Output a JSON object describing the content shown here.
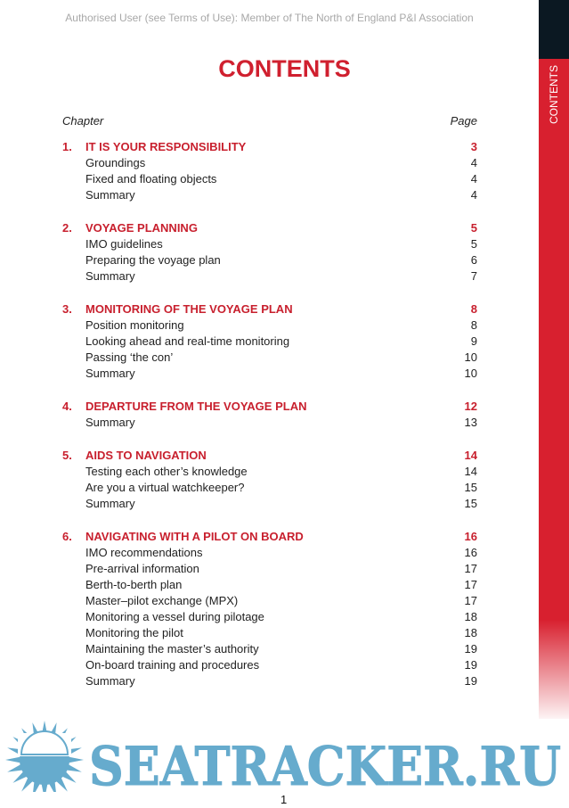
{
  "header": {
    "text": "Authorised User (see Terms of Use): Member of The North of England P&I Association"
  },
  "sidebar": {
    "label": "CONTENTS",
    "colors": {
      "dark": "#0b1822",
      "red": "#d8202f"
    }
  },
  "title": "CONTENTS",
  "columns": {
    "chapter": "Chapter",
    "page": "Page"
  },
  "chapters": [
    {
      "num": "1.",
      "title": "IT IS YOUR RESPONSIBILITY",
      "page": "3",
      "items": [
        {
          "label": "Groundings",
          "page": "4"
        },
        {
          "label": "Fixed and floating objects",
          "page": "4"
        },
        {
          "label": "Summary",
          "page": "4"
        }
      ]
    },
    {
      "num": "2.",
      "title": "VOYAGE PLANNING",
      "page": "5",
      "items": [
        {
          "label": "IMO guidelines",
          "page": "5"
        },
        {
          "label": "Preparing the voyage plan",
          "page": "6"
        },
        {
          "label": "Summary",
          "page": "7"
        }
      ]
    },
    {
      "num": "3.",
      "title": "MONITORING OF THE VOYAGE PLAN",
      "page": "8",
      "items": [
        {
          "label": "Position monitoring",
          "page": "8"
        },
        {
          "label": "Looking ahead and real-time monitoring",
          "page": "9"
        },
        {
          "label": "Passing ‘the con’",
          "page": "10"
        },
        {
          "label": "Summary",
          "page": "10"
        }
      ]
    },
    {
      "num": "4.",
      "title": "DEPARTURE FROM THE VOYAGE PLAN",
      "page": "12",
      "items": [
        {
          "label": "Summary",
          "page": "13"
        }
      ]
    },
    {
      "num": "5.",
      "title": "AIDS TO NAVIGATION",
      "page": "14",
      "items": [
        {
          "label": "Testing each other’s knowledge",
          "page": "14"
        },
        {
          "label": "Are you a virtual watchkeeper?",
          "page": "15"
        },
        {
          "label": "Summary",
          "page": "15"
        }
      ]
    },
    {
      "num": "6.",
      "title": "NAVIGATING WITH A PILOT ON BOARD",
      "page": "16",
      "items": [
        {
          "label": "IMO recommendations",
          "page": "16"
        },
        {
          "label": "Pre-arrival information",
          "page": "17"
        },
        {
          "label": "Berth-to-berth plan",
          "page": "17"
        },
        {
          "label": "Master–pilot exchange (MPX)",
          "page": "17"
        },
        {
          "label": "Monitoring a vessel during pilotage",
          "page": "18"
        },
        {
          "label": "Monitoring the pilot",
          "page": "18"
        },
        {
          "label": "Maintaining the master’s authority",
          "page": "19"
        },
        {
          "label": "On-board training and procedures",
          "page": "19"
        },
        {
          "label": "Summary",
          "page": "19"
        }
      ]
    }
  ],
  "page_number": "1",
  "watermark": {
    "text": "SEATRACKER.RU",
    "color": "#66abcd"
  }
}
